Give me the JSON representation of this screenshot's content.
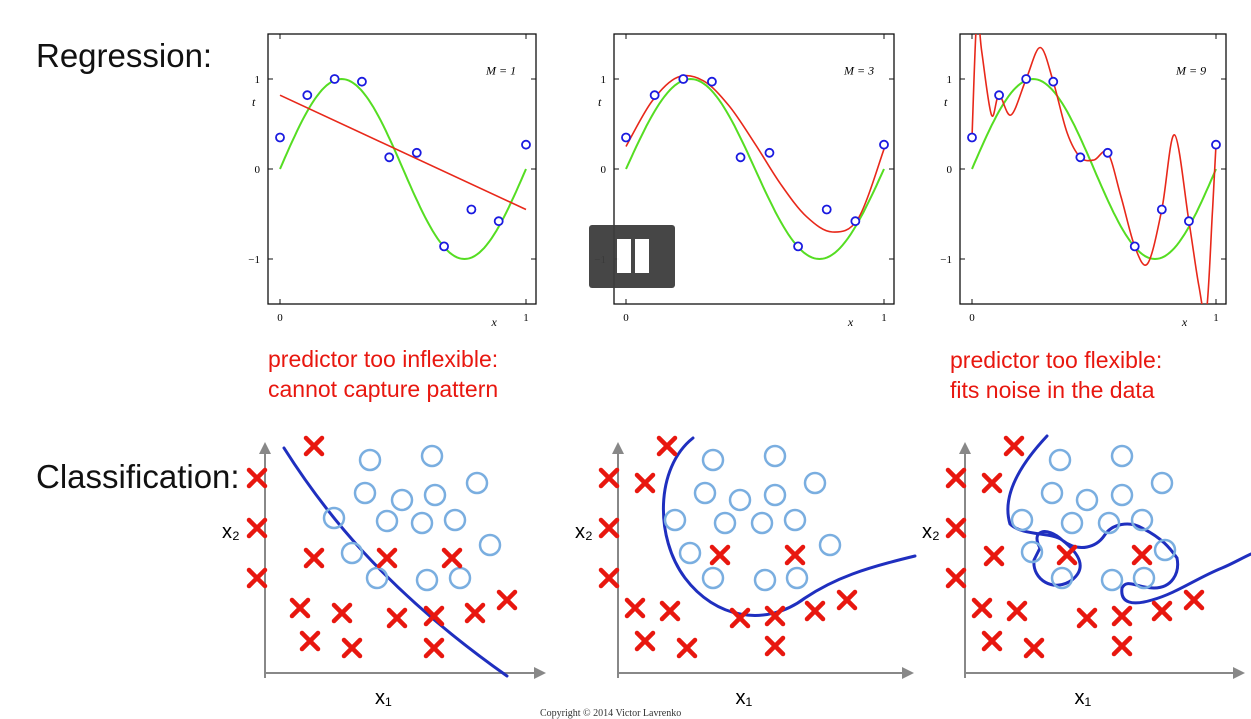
{
  "labels": {
    "regression": "Regression:",
    "classification": "Classification:"
  },
  "notes": {
    "underfit_line1": "predictor too inflexible:",
    "underfit_line2": "cannot capture pattern",
    "overfit_line1": "predictor too flexible:",
    "overfit_line2": "fits noise in the data"
  },
  "copyright": "Copyright © 2014 Victor Lavrenko",
  "regression_axes": {
    "y_label": "t",
    "x_label": "x",
    "x_ticks": [
      "0",
      "1"
    ],
    "y_ticks": [
      "1",
      "0",
      "−1"
    ]
  },
  "classification_axes": {
    "x_label": "x₁",
    "y_label": "x₂"
  },
  "colors": {
    "true_curve": "#55dd22",
    "fit_curve": "#e8281a",
    "points": "#1a1ae0",
    "boundary": "#1f2fbf",
    "class_x": "#e8170f",
    "class_o": "#7aaee0"
  },
  "chart_data": [
    {
      "type": "line",
      "title": "M = 1",
      "xlabel": "x",
      "ylabel": "t",
      "xlim": [
        0,
        1
      ],
      "ylim": [
        -1.5,
        1.5
      ],
      "points": {
        "x": [
          0,
          0.111,
          0.222,
          0.333,
          0.444,
          0.556,
          0.667,
          0.778,
          0.889,
          1.0
        ],
        "y": [
          0.35,
          0.82,
          1.0,
          0.97,
          0.13,
          0.18,
          -0.86,
          -0.45,
          -0.58,
          0.27
        ]
      },
      "series": [
        {
          "name": "",
          "kind": "true",
          "x": [
            0,
            1
          ],
          "y": [
            0,
            0
          ]
        },
        {
          "name": "",
          "kind": "fit",
          "x": [
            0,
            1
          ],
          "y": [
            0.82,
            -0.45
          ]
        }
      ]
    },
    {
      "type": "line",
      "title": "M = 3",
      "xlabel": "x",
      "ylabel": "t",
      "xlim": [
        0,
        1
      ],
      "ylim": [
        -1.5,
        1.5
      ],
      "points": {
        "x": [
          0,
          0.111,
          0.222,
          0.333,
          0.444,
          0.556,
          0.667,
          0.778,
          0.889,
          1.0
        ],
        "y": [
          0.35,
          0.82,
          1.0,
          0.97,
          0.13,
          0.18,
          -0.86,
          -0.45,
          -0.58,
          0.27
        ]
      },
      "series": [
        {
          "name": "",
          "kind": "fit",
          "x": [
            0,
            0.1,
            0.2,
            0.3,
            0.4,
            0.5,
            0.6,
            0.7,
            0.8,
            0.9,
            1.0
          ],
          "y": [
            0.25,
            0.75,
            1.02,
            0.98,
            0.7,
            0.28,
            -0.17,
            -0.53,
            -0.7,
            -0.55,
            0.22
          ]
        }
      ]
    },
    {
      "type": "line",
      "title": "M = 9",
      "xlabel": "x",
      "ylabel": "t",
      "xlim": [
        0,
        1
      ],
      "ylim": [
        -1.5,
        1.5
      ],
      "points": {
        "x": [
          0,
          0.111,
          0.222,
          0.333,
          0.444,
          0.556,
          0.667,
          0.778,
          0.889,
          1.0
        ],
        "y": [
          0.35,
          0.82,
          1.0,
          0.97,
          0.13,
          0.18,
          -0.86,
          -0.45,
          -0.58,
          0.27
        ]
      },
      "series": [
        {
          "name": "",
          "kind": "fit",
          "x": [
            0,
            0.02,
            0.04,
            0.08,
            0.111,
            0.16,
            0.222,
            0.28,
            0.333,
            0.39,
            0.444,
            0.5,
            0.556,
            0.61,
            0.667,
            0.72,
            0.778,
            0.83,
            0.889,
            0.93,
            0.96,
            0.985,
            1.0
          ],
          "y": [
            0.35,
            1.7,
            1.3,
            0.6,
            0.82,
            0.6,
            1.0,
            1.35,
            0.97,
            0.4,
            0.13,
            0.1,
            0.18,
            -0.3,
            -0.86,
            -1.05,
            -0.45,
            0.38,
            -0.58,
            -1.3,
            -1.6,
            -0.5,
            0.27
          ]
        }
      ]
    }
  ],
  "classification_panels": [
    {
      "x_marks": [
        [
          35,
          50
        ],
        [
          92,
          18
        ],
        [
          35,
          100
        ],
        [
          35,
          150
        ],
        [
          92,
          130
        ],
        [
          165,
          130
        ],
        [
          230,
          130
        ],
        [
          78,
          180
        ],
        [
          120,
          185
        ],
        [
          175,
          190
        ],
        [
          212,
          188
        ],
        [
          253,
          185
        ],
        [
          285,
          172
        ],
        [
          88,
          213
        ],
        [
          130,
          220
        ],
        [
          212,
          220
        ]
      ],
      "o_marks": [
        [
          148,
          32
        ],
        [
          210,
          28
        ],
        [
          143,
          65
        ],
        [
          180,
          72
        ],
        [
          213,
          67
        ],
        [
          255,
          55
        ],
        [
          112,
          90
        ],
        [
          165,
          93
        ],
        [
          200,
          95
        ],
        [
          233,
          92
        ],
        [
          130,
          125
        ],
        [
          268,
          117
        ],
        [
          155,
          150
        ],
        [
          205,
          152
        ],
        [
          238,
          150
        ]
      ]
    },
    {
      "x_marks": [
        [
          34,
          50
        ],
        [
          92,
          18
        ],
        [
          70,
          55
        ],
        [
          34,
          100
        ],
        [
          34,
          150
        ],
        [
          145,
          127
        ],
        [
          220,
          127
        ],
        [
          60,
          180
        ],
        [
          95,
          183
        ],
        [
          165,
          190
        ],
        [
          200,
          188
        ],
        [
          240,
          183
        ],
        [
          272,
          172
        ],
        [
          70,
          213
        ],
        [
          112,
          220
        ],
        [
          200,
          218
        ]
      ],
      "o_marks": [
        [
          138,
          32
        ],
        [
          200,
          28
        ],
        [
          130,
          65
        ],
        [
          165,
          72
        ],
        [
          200,
          67
        ],
        [
          240,
          55
        ],
        [
          100,
          92
        ],
        [
          150,
          95
        ],
        [
          187,
          95
        ],
        [
          220,
          92
        ],
        [
          115,
          125
        ],
        [
          255,
          117
        ],
        [
          138,
          150
        ],
        [
          190,
          152
        ],
        [
          222,
          150
        ]
      ]
    },
    {
      "x_marks": [
        [
          34,
          50
        ],
        [
          92,
          18
        ],
        [
          70,
          55
        ],
        [
          34,
          100
        ],
        [
          34,
          150
        ],
        [
          72,
          128
        ],
        [
          145,
          127
        ],
        [
          220,
          127
        ],
        [
          60,
          180
        ],
        [
          95,
          183
        ],
        [
          165,
          190
        ],
        [
          200,
          188
        ],
        [
          240,
          183
        ],
        [
          272,
          172
        ],
        [
          70,
          213
        ],
        [
          112,
          220
        ],
        [
          200,
          218
        ]
      ],
      "o_marks": [
        [
          138,
          32
        ],
        [
          200,
          28
        ],
        [
          130,
          65
        ],
        [
          165,
          72
        ],
        [
          200,
          67
        ],
        [
          240,
          55
        ],
        [
          100,
          92
        ],
        [
          150,
          95
        ],
        [
          187,
          95
        ],
        [
          220,
          92
        ],
        [
          110,
          124
        ],
        [
          140,
          150
        ],
        [
          190,
          152
        ],
        [
          222,
          150
        ],
        [
          243,
          122
        ]
      ]
    }
  ]
}
